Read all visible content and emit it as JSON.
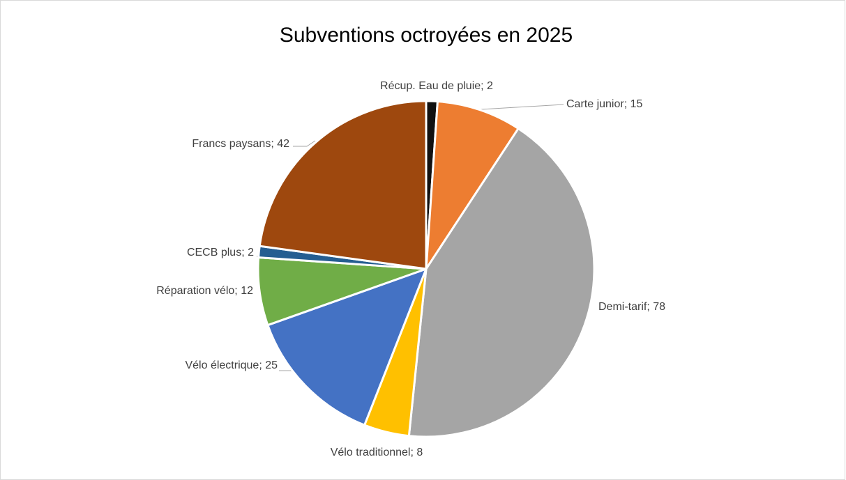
{
  "chart_data": {
    "type": "pie",
    "title": "Subventions octroyées en 2025",
    "categories": [
      "Récup. Eau de pluie",
      "Carte junior",
      "Demi-tarif",
      "Vélo traditionnel",
      "Vélo électrique",
      "Réparation vélo",
      "CECB plus",
      "Francs paysans"
    ],
    "values": [
      2,
      15,
      78,
      8,
      25,
      12,
      2,
      42
    ],
    "value_labels": [
      "Récup. Eau de pluie; 2",
      "Carte junior; 15",
      "Demi-tarif; 78",
      "Vélo traditionnel; 8",
      "Vélo électrique; 25",
      "Réparation vélo; 12",
      "CECB plus; 2",
      "Francs paysans; 42"
    ],
    "colors": [
      "#111111",
      "#ed7d31",
      "#a5a5a5",
      "#ffc000",
      "#4472c4",
      "#70ad47",
      "#255e91",
      "#9e480e"
    ]
  }
}
